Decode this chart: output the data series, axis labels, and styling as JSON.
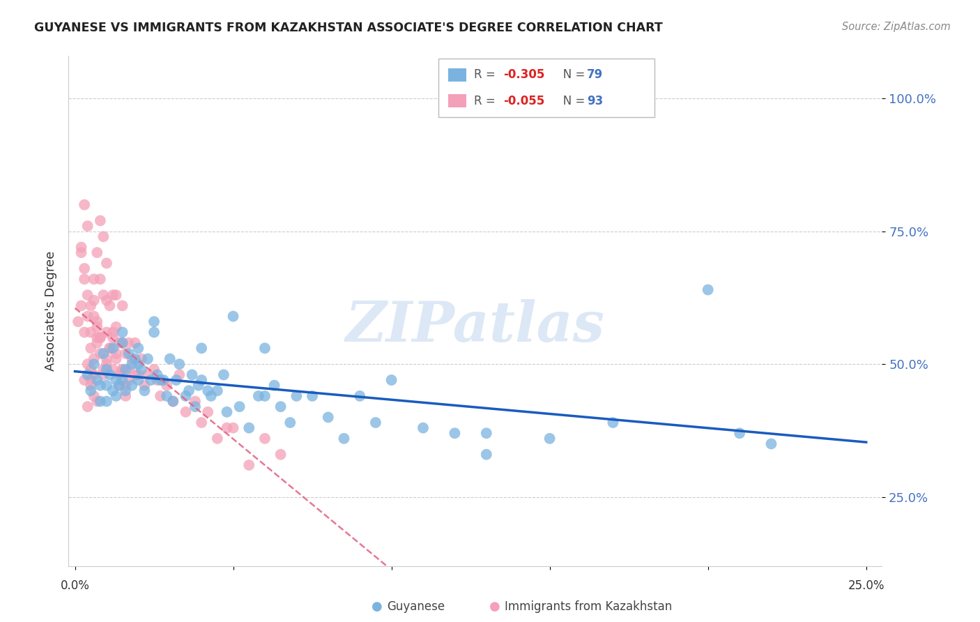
{
  "title": "GUYANESE VS IMMIGRANTS FROM KAZAKHSTAN ASSOCIATE'S DEGREE CORRELATION CHART",
  "source": "Source: ZipAtlas.com",
  "ylabel": "Associate's Degree",
  "ytick_labels": [
    "25.0%",
    "50.0%",
    "75.0%",
    "100.0%"
  ],
  "ytick_vals": [
    0.25,
    0.5,
    0.75,
    1.0
  ],
  "xtick_labels": [
    "0.0%",
    "",
    "",
    "",
    "",
    "25.0%"
  ],
  "xtick_vals": [
    0.0,
    0.05,
    0.1,
    0.15,
    0.2,
    0.25
  ],
  "xlim": [
    -0.002,
    0.255
  ],
  "ylim": [
    0.12,
    1.08
  ],
  "color_blue": "#7ab3e0",
  "color_pink": "#f4a0b8",
  "color_blue_line": "#1a5bbf",
  "color_pink_line": "#e06080",
  "watermark_color": "#dce8f5",
  "blue_scatter_x": [
    0.004,
    0.005,
    0.006,
    0.007,
    0.008,
    0.008,
    0.009,
    0.01,
    0.01,
    0.01,
    0.011,
    0.012,
    0.012,
    0.013,
    0.013,
    0.014,
    0.015,
    0.015,
    0.016,
    0.016,
    0.017,
    0.018,
    0.018,
    0.019,
    0.02,
    0.02,
    0.021,
    0.022,
    0.023,
    0.024,
    0.025,
    0.026,
    0.027,
    0.028,
    0.029,
    0.03,
    0.031,
    0.032,
    0.033,
    0.035,
    0.036,
    0.037,
    0.038,
    0.039,
    0.04,
    0.042,
    0.043,
    0.045,
    0.047,
    0.048,
    0.05,
    0.052,
    0.055,
    0.058,
    0.06,
    0.063,
    0.065,
    0.068,
    0.07,
    0.075,
    0.08,
    0.085,
    0.09,
    0.095,
    0.1,
    0.11,
    0.12,
    0.13,
    0.15,
    0.17,
    0.2,
    0.21,
    0.22,
    0.13,
    0.06,
    0.025,
    0.04,
    0.015,
    0.02
  ],
  "blue_scatter_y": [
    0.48,
    0.45,
    0.5,
    0.47,
    0.46,
    0.43,
    0.52,
    0.49,
    0.46,
    0.43,
    0.48,
    0.53,
    0.45,
    0.47,
    0.44,
    0.46,
    0.54,
    0.47,
    0.49,
    0.45,
    0.52,
    0.5,
    0.46,
    0.51,
    0.53,
    0.47,
    0.49,
    0.45,
    0.51,
    0.47,
    0.56,
    0.48,
    0.47,
    0.47,
    0.44,
    0.51,
    0.43,
    0.47,
    0.5,
    0.44,
    0.45,
    0.48,
    0.42,
    0.46,
    0.47,
    0.45,
    0.44,
    0.45,
    0.48,
    0.41,
    0.59,
    0.42,
    0.38,
    0.44,
    0.44,
    0.46,
    0.42,
    0.39,
    0.44,
    0.44,
    0.4,
    0.36,
    0.44,
    0.39,
    0.47,
    0.38,
    0.37,
    0.33,
    0.36,
    0.39,
    0.64,
    0.37,
    0.35,
    0.37,
    0.53,
    0.58,
    0.53,
    0.56,
    0.5
  ],
  "pink_scatter_x": [
    0.001,
    0.002,
    0.002,
    0.003,
    0.003,
    0.003,
    0.004,
    0.004,
    0.004,
    0.005,
    0.005,
    0.005,
    0.005,
    0.006,
    0.006,
    0.006,
    0.007,
    0.007,
    0.007,
    0.008,
    0.008,
    0.008,
    0.009,
    0.009,
    0.009,
    0.01,
    0.01,
    0.01,
    0.01,
    0.011,
    0.011,
    0.012,
    0.012,
    0.012,
    0.013,
    0.013,
    0.013,
    0.014,
    0.014,
    0.015,
    0.015,
    0.015,
    0.016,
    0.016,
    0.017,
    0.017,
    0.018,
    0.019,
    0.019,
    0.02,
    0.021,
    0.022,
    0.023,
    0.025,
    0.026,
    0.027,
    0.029,
    0.031,
    0.033,
    0.035,
    0.038,
    0.04,
    0.042,
    0.045,
    0.048,
    0.05,
    0.055,
    0.06,
    0.065,
    0.003,
    0.004,
    0.005,
    0.006,
    0.007,
    0.008,
    0.009,
    0.01,
    0.011,
    0.012,
    0.013,
    0.002,
    0.003,
    0.006,
    0.007,
    0.008,
    0.004,
    0.005,
    0.006,
    0.007,
    0.014,
    0.015,
    0.016,
    0.017
  ],
  "pink_scatter_y": [
    0.58,
    0.61,
    0.71,
    0.56,
    0.66,
    0.8,
    0.59,
    0.63,
    0.76,
    0.49,
    0.53,
    0.61,
    0.56,
    0.51,
    0.66,
    0.59,
    0.54,
    0.71,
    0.57,
    0.55,
    0.66,
    0.77,
    0.49,
    0.63,
    0.74,
    0.69,
    0.51,
    0.56,
    0.62,
    0.53,
    0.61,
    0.49,
    0.56,
    0.63,
    0.51,
    0.57,
    0.63,
    0.48,
    0.54,
    0.49,
    0.54,
    0.61,
    0.46,
    0.52,
    0.49,
    0.54,
    0.51,
    0.54,
    0.48,
    0.48,
    0.51,
    0.46,
    0.48,
    0.49,
    0.47,
    0.44,
    0.46,
    0.43,
    0.48,
    0.41,
    0.43,
    0.39,
    0.41,
    0.36,
    0.38,
    0.38,
    0.31,
    0.36,
    0.33,
    0.47,
    0.5,
    0.46,
    0.48,
    0.55,
    0.52,
    0.48,
    0.5,
    0.53,
    0.55,
    0.52,
    0.72,
    0.68,
    0.62,
    0.58,
    0.55,
    0.42,
    0.47,
    0.44,
    0.43,
    0.46,
    0.49,
    0.44,
    0.47
  ]
}
